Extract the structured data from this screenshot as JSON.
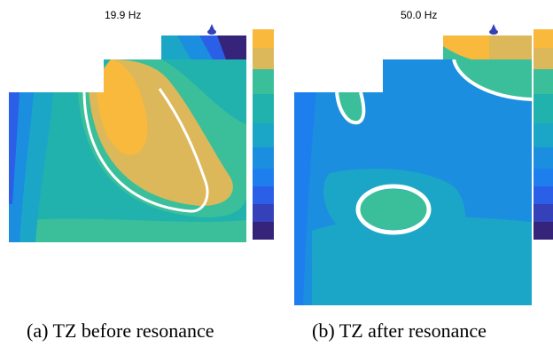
{
  "figures": [
    {
      "frequency_label": "19.9 Hz",
      "caption": "(a) TZ before resonance",
      "colorbar_colors": [
        "#f9b93c",
        "#ddb85a",
        "#3bbf9b",
        "#21b2ad",
        "#1ba6c8",
        "#1b8ee0",
        "#1d7fee",
        "#2b5fe8",
        "#3441b8",
        "#35247a"
      ]
    },
    {
      "frequency_label": "50.0 Hz",
      "caption": "(b) TZ after resonance",
      "colorbar_colors": [
        "#f9b93c",
        "#ddb85a",
        "#3bbf9b",
        "#21b2ad",
        "#1ba6c8",
        "#1b8ee0",
        "#1d7fee",
        "#2b5fe8",
        "#3441b8",
        "#35247a"
      ]
    }
  ]
}
